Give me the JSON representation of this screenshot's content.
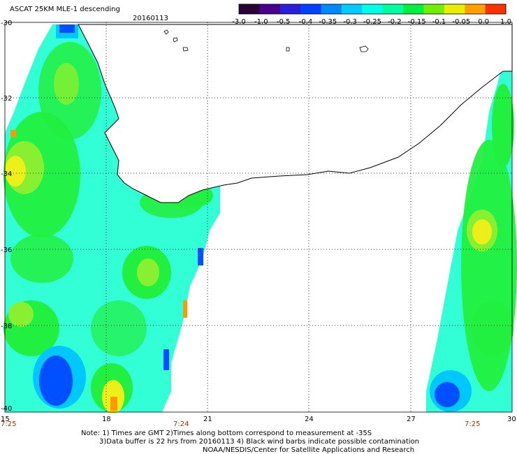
{
  "header": {
    "product": "ASCAT 25KM MLE-1 descending",
    "date": "20160113"
  },
  "colorbar": {
    "tick_labels": [
      "-3.0",
      "-1.0",
      "-0.5",
      "-0.4",
      "-0.35",
      "-0.3",
      "-0.25",
      "-0.2",
      "-0.15",
      "-0.1",
      "-0.05",
      "0.0",
      "1.0"
    ],
    "colors": [
      "#2a0038",
      "#48008c",
      "#2a1fd8",
      "#0040ff",
      "#0088ff",
      "#00ccff",
      "#00ffe6",
      "#00ffa0",
      "#00f040",
      "#70f000",
      "#e8f000",
      "#ffa000",
      "#ff3000"
    ]
  },
  "map": {
    "lat_labels": [
      "-30",
      "-32",
      "-34",
      "-36",
      "-38",
      "-40"
    ],
    "lon_labels": [
      "15",
      "18",
      "21",
      "24",
      "27",
      "30"
    ],
    "time_labels": [
      "7:25",
      "7:24",
      "7:25"
    ]
  },
  "notes": {
    "line1": "Note: 1) Times are GMT 2)Times along bottom correspond to measurement at -35S",
    "line2": "3)Data buffer is 22 hrs from 20160113 4) Black wind barbs indicate possible contamination",
    "line3": "NOAA/NESDIS/Center for Satellite Applications and Research"
  },
  "palette": {
    "teal": "#33ffd6",
    "cyan": "#22ffee",
    "lightblue": "#00c8ff",
    "blue": "#0050ff",
    "green": "#22f040",
    "lime": "#88f030",
    "yellow": "#ecf018",
    "orange": "#ff9900"
  }
}
